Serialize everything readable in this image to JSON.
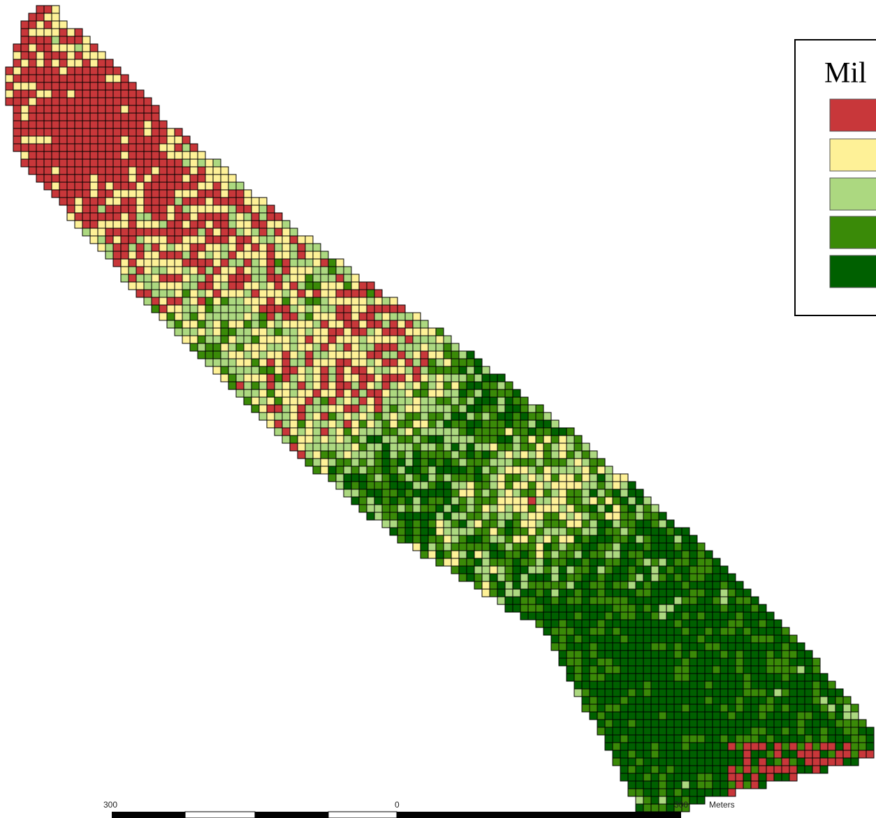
{
  "legend": {
    "title": "Mil",
    "colors": [
      "#c8373a",
      "#fef197",
      "#acd880",
      "#3a8a08",
      "#006000"
    ]
  },
  "scale_bar": {
    "labels": [
      "300",
      "0",
      "300"
    ],
    "unit": "Meters"
  }
}
